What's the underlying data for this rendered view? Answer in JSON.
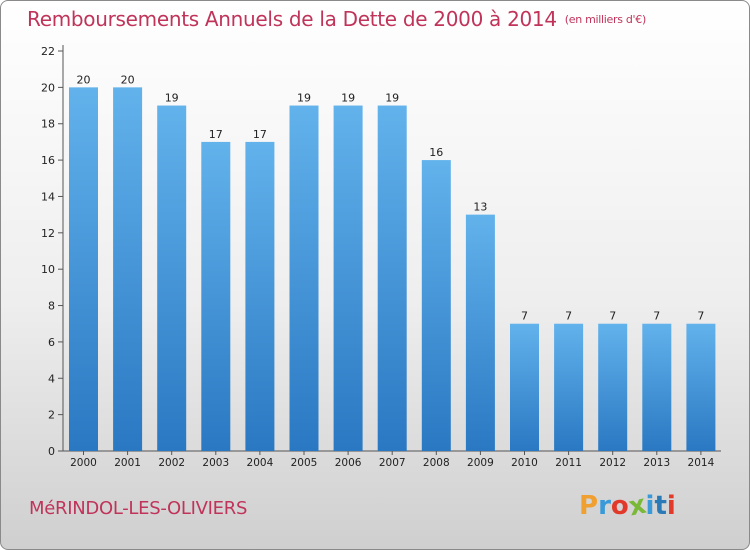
{
  "header": {
    "title": "Remboursements Annuels de la Dette de 2000 à 2014",
    "subtitle": "(en milliers d'€)"
  },
  "footer": {
    "location": "MéRINDOL-LES-OLIVIERS",
    "logo_text": "Proxiti"
  },
  "colors": {
    "title": "#c0345a",
    "bar_top": "#62b2ec",
    "bar_bottom": "#2a78c2",
    "logo_letters": [
      "#f0a030",
      "#3a9ad9",
      "#e23a2a",
      "#7ab837",
      "#3a9ad9",
      "#2a7ab8",
      "#e23a2a"
    ]
  },
  "chart_data": {
    "type": "bar",
    "categories": [
      "2000",
      "2001",
      "2002",
      "2003",
      "2004",
      "2005",
      "2006",
      "2007",
      "2008",
      "2009",
      "2010",
      "2011",
      "2012",
      "2013",
      "2014"
    ],
    "values": [
      20,
      20,
      19,
      17,
      17,
      19,
      19,
      19,
      16,
      13,
      7,
      7,
      7,
      7,
      7
    ],
    "title": "Remboursements Annuels de la Dette de 2000 à 2014",
    "ylim": [
      0,
      22
    ],
    "yticks": [
      0,
      2,
      4,
      6,
      8,
      10,
      12,
      14,
      16,
      18,
      20,
      22
    ],
    "grid": false,
    "data_labels": true
  }
}
